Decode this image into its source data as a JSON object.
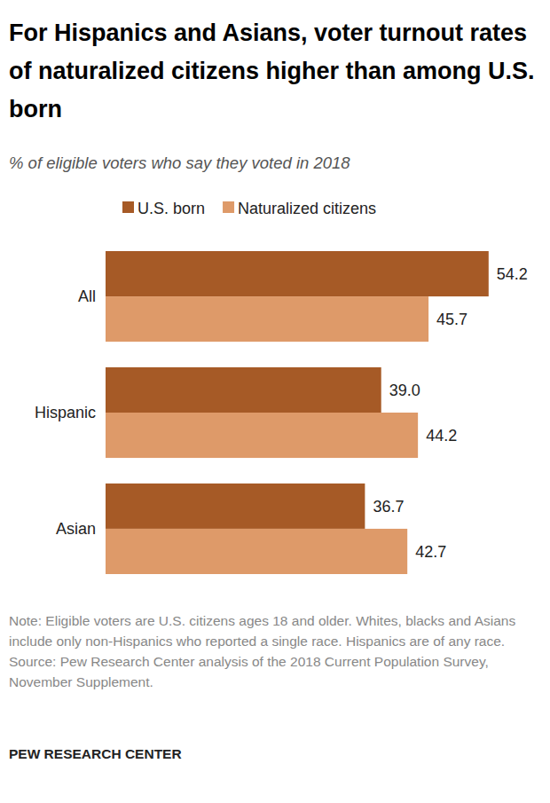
{
  "chart_data": {
    "type": "bar",
    "orientation": "horizontal",
    "title": "For Hispanics and Asians, voter turnout rates of naturalized citizens higher than among U.S. born",
    "subtitle": "% of eligible voters who say they voted in 2018",
    "categories": [
      "All",
      "Hispanic",
      "Asian"
    ],
    "series": [
      {
        "name": "U.S. born",
        "color": "#a65a26",
        "values": [
          54.2,
          39.0,
          36.7
        ],
        "value_labels": [
          "54.2",
          "39.0",
          "36.7"
        ]
      },
      {
        "name": "Naturalized citizens",
        "color": "#de9a69",
        "values": [
          45.7,
          44.2,
          42.7
        ]
      }
    ],
    "xlim": [
      0,
      60
    ],
    "data_labels": true,
    "tick_labels": "y",
    "annotations": [
      "Note: Eligible voters are U.S. citizens ages 18 and older. Whites, blacks and Asians include only non-Hispanics who reported a single race. Hispanics are of any race.",
      "Source: Pew Research Center analysis of the 2018 Current Population Survey, November Supplement.",
      "PEW RESEARCH CENTER"
    ]
  }
}
